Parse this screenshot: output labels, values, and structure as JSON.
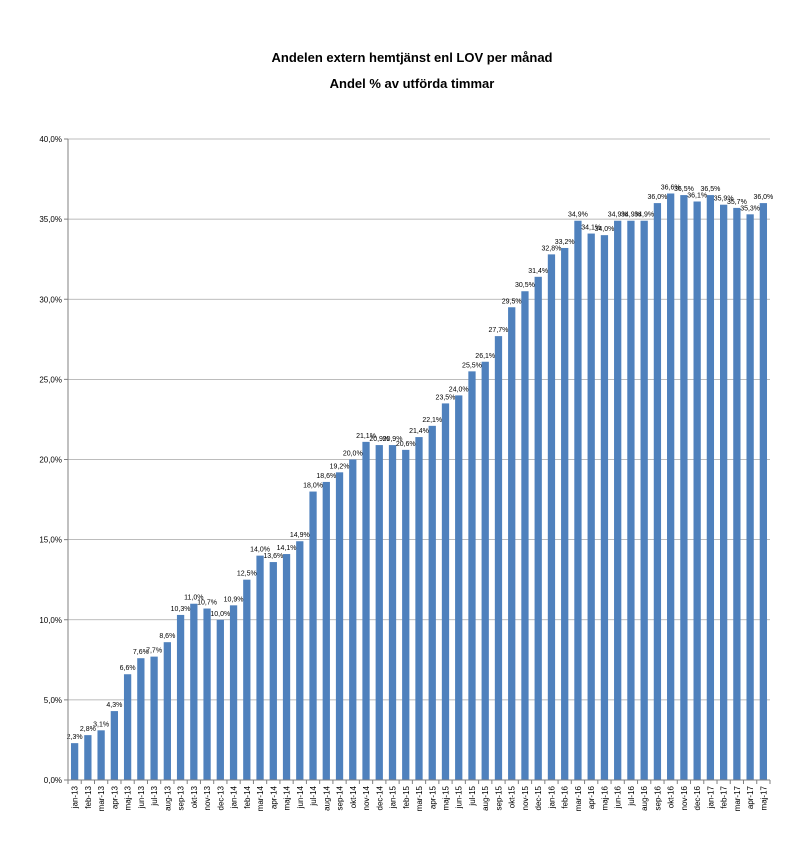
{
  "chart_data": {
    "type": "bar",
    "title": "Andelen extern hemtjänst enl LOV per månad",
    "subtitle": "Andel % av utförda timmar",
    "ylim": [
      0,
      40
    ],
    "yticks": [
      "0,0%",
      "5,0%",
      "10,0%",
      "15,0%",
      "20,0%",
      "25,0%",
      "30,0%",
      "35,0%",
      "40,0%"
    ],
    "grid": true,
    "legend": "none",
    "bar_color": "#4f81bd",
    "categories": [
      "jan-13",
      "feb-13",
      "mar-13",
      "apr-13",
      "maj-13",
      "jun-13",
      "jul-13",
      "aug-13",
      "sep-13",
      "okt-13",
      "nov-13",
      "dec-13",
      "jan-14",
      "feb-14",
      "mar-14",
      "apr-14",
      "maj-14",
      "jun-14",
      "jul-14",
      "aug-14",
      "sep-14",
      "okt-14",
      "nov-14",
      "dec-14",
      "jan-15",
      "feb-15",
      "mar-15",
      "apr-15",
      "maj-15",
      "jun-15",
      "jul-15",
      "aug-15",
      "sep-15",
      "okt-15",
      "nov-15",
      "dec-15",
      "jan-16",
      "feb-16",
      "mar-16",
      "apr-16",
      "maj-16",
      "jun-16",
      "jul-16",
      "aug-16",
      "sep-16",
      "okt-16",
      "nov-16",
      "dec-16",
      "jan-17",
      "feb-17",
      "mar-17",
      "apr-17",
      "maj-17"
    ],
    "values": [
      2.3,
      2.8,
      3.1,
      4.3,
      6.6,
      7.6,
      7.7,
      8.6,
      10.3,
      11.0,
      10.7,
      10.0,
      10.9,
      12.5,
      14.0,
      13.6,
      14.1,
      14.9,
      18.0,
      18.6,
      19.2,
      20.0,
      21.1,
      20.9,
      20.9,
      20.6,
      21.4,
      22.1,
      23.5,
      24.0,
      25.5,
      26.1,
      27.7,
      29.5,
      30.5,
      31.4,
      32.8,
      33.2,
      34.9,
      34.1,
      34.0,
      34.9,
      34.9,
      34.9,
      36.0,
      36.6,
      36.5,
      36.1,
      36.5,
      35.9,
      35.7,
      35.3,
      36.0
    ],
    "data_labels": [
      "2,3%",
      "2,8%",
      "3,1%",
      "4,3%",
      "6,6%",
      "7,6%",
      "7,7%",
      "8,6%",
      "10,3%",
      "11,0%",
      "10,7%",
      "10,0%",
      "10,9%",
      "12,5%",
      "14,0%",
      "13,6%",
      "14,1%",
      "14,9%",
      "18,0%",
      "18,6%",
      "19,2%",
      "20,0%",
      "21,1%",
      "20,9%",
      "20,9%",
      "20,6%",
      "21,4%",
      "22,1%",
      "23,5%",
      "24,0%",
      "25,5%",
      "26,1%",
      "27,7%",
      "29,5%",
      "30,5%",
      "31,4%",
      "32,8%",
      "33,2%",
      "34,9%",
      "34,1%",
      "34,0%",
      "34,9%",
      "34,9%",
      "34,9%",
      "36,0%",
      "36,6%",
      "36,5%",
      "36,1%",
      "36,5%",
      "35,9%",
      "35,7%",
      "35,3%",
      "36,0%"
    ]
  }
}
